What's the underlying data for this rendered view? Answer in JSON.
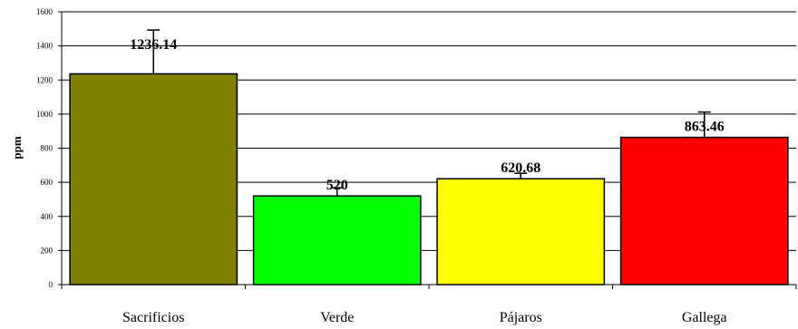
{
  "chart_data": {
    "type": "bar",
    "categories": [
      "Sacrificios",
      "Verde",
      "Pájaros",
      "Gallega"
    ],
    "values": [
      1236.14,
      520,
      620.68,
      863.46
    ],
    "data_labels": [
      "1236.14",
      "520",
      "620.68",
      "863.46"
    ],
    "error_upper": [
      1493,
      568,
      653,
      1012
    ],
    "colors": [
      "#808000",
      "#00ff00",
      "#ffff00",
      "#ff0000"
    ],
    "ylabel": "ppm",
    "xlabel": "",
    "title": "",
    "ylim": [
      0,
      1600
    ],
    "yticks": [
      0,
      200,
      400,
      600,
      800,
      1000,
      1200,
      1400,
      1600
    ],
    "grid": true,
    "legend": false
  }
}
